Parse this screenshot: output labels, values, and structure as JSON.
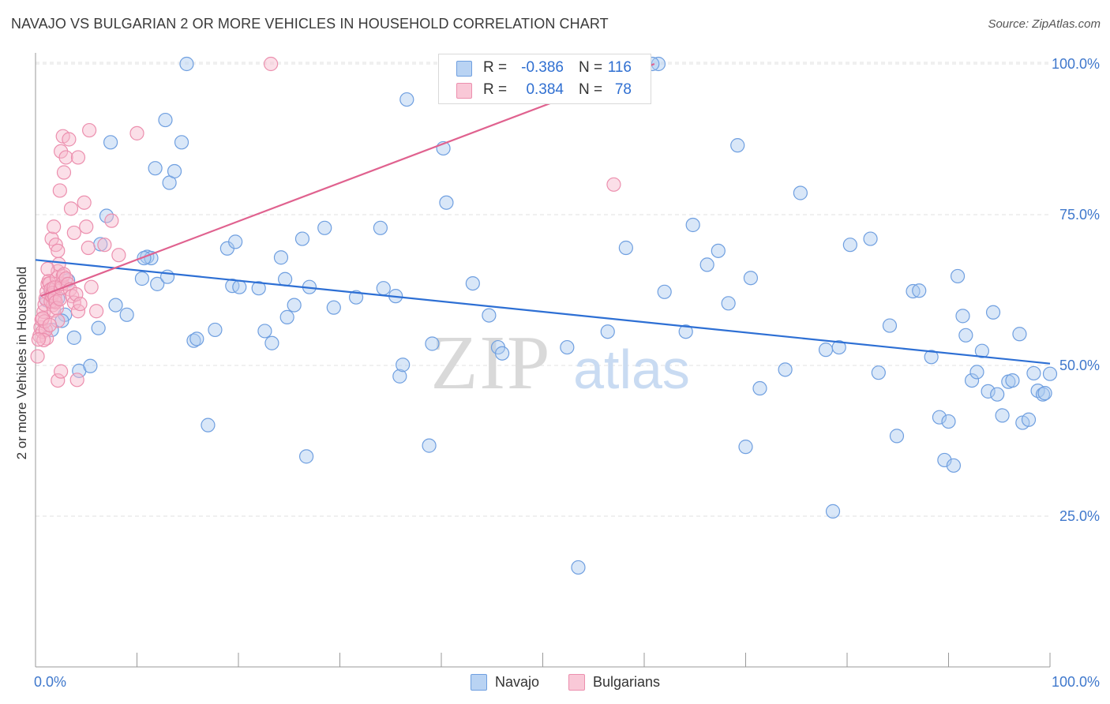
{
  "title": "NAVAJO VS BULGARIAN 2 OR MORE VEHICLES IN HOUSEHOLD CORRELATION CHART",
  "source": "Source: ZipAtlas.com",
  "watermark": {
    "zip": "ZIP",
    "atlas": "atlas"
  },
  "legend": {
    "rows": [
      {
        "r_label": "R =",
        "r_value": "-0.386",
        "n_label": "N =",
        "n_value": "116"
      },
      {
        "r_label": "R =",
        "r_value": "0.384",
        "n_label": "N =",
        "n_value": "78"
      }
    ]
  },
  "bottom_legend": {
    "navajo": "Navajo",
    "bulgarians": "Bulgarians"
  },
  "colors": {
    "navajo_fill": "#aac9f0",
    "navajo_stroke": "#6f9fe0",
    "navajo_line": "#2d6fd4",
    "bulgarian_fill": "#f7b8cb",
    "bulgarian_stroke": "#ec8fae",
    "bulgarian_line": "#e0628f",
    "tick_label": "#3f78cc",
    "grid": "#e2e2e2"
  },
  "chart_data": {
    "type": "scatter",
    "title": "NAVAJO VS BULGARIAN 2 OR MORE VEHICLES IN HOUSEHOLD CORRELATION CHART",
    "xlabel": "",
    "ylabel": "2 or more Vehicles in Household",
    "xlim": [
      0,
      100
    ],
    "ylim": [
      0,
      103
    ],
    "x_tick_labels": [
      "0.0%",
      "100.0%"
    ],
    "y_ticks": [
      25,
      50,
      75,
      100
    ],
    "y_tick_labels": [
      "25.0%",
      "50.0%",
      "75.0%",
      "100.0%"
    ],
    "grid": true,
    "legend_position": "top-center",
    "series": [
      {
        "name": "Navajo",
        "r": -0.386,
        "n": 116,
        "trend": {
          "x": [
            0,
            100
          ],
          "y": [
            67.5,
            50.3
          ]
        },
        "points": [
          [
            1.5,
            62.4
          ],
          [
            2.2,
            61.1
          ],
          [
            2.9,
            58.4
          ],
          [
            3.2,
            64.1
          ],
          [
            2.6,
            57.4
          ],
          [
            3.8,
            54.6
          ],
          [
            4.3,
            49.1
          ],
          [
            5.4,
            49.9
          ],
          [
            6.4,
            70.1
          ],
          [
            6.2,
            56.2
          ],
          [
            7.0,
            74.8
          ],
          [
            7.4,
            87.0
          ],
          [
            7.9,
            60.0
          ],
          [
            9.0,
            58.4
          ],
          [
            10.5,
            64.4
          ],
          [
            11.0,
            68.0
          ],
          [
            11.4,
            67.8
          ],
          [
            10.7,
            67.8
          ],
          [
            11.8,
            82.7
          ],
          [
            12.8,
            90.7
          ],
          [
            12.0,
            63.5
          ],
          [
            13.0,
            64.7
          ],
          [
            13.2,
            80.3
          ],
          [
            13.7,
            82.2
          ],
          [
            14.4,
            87.0
          ],
          [
            14.9,
            100.0
          ],
          [
            15.6,
            54.1
          ],
          [
            15.9,
            54.4
          ],
          [
            17.0,
            40.1
          ],
          [
            17.7,
            55.9
          ],
          [
            18.9,
            69.4
          ],
          [
            19.7,
            70.5
          ],
          [
            19.4,
            63.2
          ],
          [
            20.1,
            63.0
          ],
          [
            22.6,
            55.7
          ],
          [
            22.0,
            62.8
          ],
          [
            23.3,
            53.7
          ],
          [
            24.2,
            67.9
          ],
          [
            24.8,
            58.0
          ],
          [
            24.6,
            64.3
          ],
          [
            25.5,
            60.0
          ],
          [
            26.3,
            71.0
          ],
          [
            27.0,
            63.0
          ],
          [
            26.7,
            34.9
          ],
          [
            28.5,
            72.8
          ],
          [
            29.4,
            59.6
          ],
          [
            31.6,
            61.3
          ],
          [
            34.0,
            72.8
          ],
          [
            34.3,
            62.8
          ],
          [
            35.5,
            61.5
          ],
          [
            35.9,
            48.2
          ],
          [
            36.2,
            50.1
          ],
          [
            36.6,
            94.1
          ],
          [
            38.8,
            36.7
          ],
          [
            39.1,
            53.6
          ],
          [
            40.2,
            86.0
          ],
          [
            40.5,
            77.0
          ],
          [
            43.1,
            63.6
          ],
          [
            44.7,
            58.3
          ],
          [
            45.6,
            53.0
          ],
          [
            46.0,
            52.0
          ],
          [
            52.4,
            53.0
          ],
          [
            53.5,
            16.5
          ],
          [
            56.4,
            55.6
          ],
          [
            58.2,
            69.5
          ],
          [
            61.4,
            100.0
          ],
          [
            60.8,
            100.0
          ],
          [
            62.0,
            62.2
          ],
          [
            64.1,
            55.6
          ],
          [
            64.8,
            73.3
          ],
          [
            66.2,
            66.7
          ],
          [
            67.3,
            69.0
          ],
          [
            68.3,
            60.3
          ],
          [
            69.2,
            86.5
          ],
          [
            70.0,
            36.5
          ],
          [
            70.5,
            64.5
          ],
          [
            71.4,
            46.2
          ],
          [
            73.9,
            49.3
          ],
          [
            75.4,
            78.6
          ],
          [
            77.9,
            52.6
          ],
          [
            78.6,
            25.8
          ],
          [
            79.2,
            53.0
          ],
          [
            80.3,
            70.0
          ],
          [
            82.3,
            71.0
          ],
          [
            83.1,
            48.8
          ],
          [
            84.2,
            56.6
          ],
          [
            84.9,
            38.3
          ],
          [
            86.5,
            62.3
          ],
          [
            87.1,
            62.4
          ],
          [
            88.3,
            51.4
          ],
          [
            89.1,
            41.4
          ],
          [
            89.6,
            34.3
          ],
          [
            90.0,
            40.7
          ],
          [
            90.5,
            33.4
          ],
          [
            90.9,
            64.8
          ],
          [
            91.4,
            58.2
          ],
          [
            91.7,
            55.0
          ],
          [
            92.3,
            47.5
          ],
          [
            92.8,
            48.9
          ],
          [
            93.3,
            52.4
          ],
          [
            93.9,
            45.7
          ],
          [
            94.4,
            58.8
          ],
          [
            94.8,
            45.2
          ],
          [
            95.3,
            41.7
          ],
          [
            95.9,
            47.3
          ],
          [
            96.3,
            47.5
          ],
          [
            97.0,
            55.2
          ],
          [
            97.3,
            40.5
          ],
          [
            97.9,
            41.0
          ],
          [
            98.4,
            48.7
          ],
          [
            98.8,
            45.8
          ],
          [
            99.3,
            45.2
          ],
          [
            99.5,
            45.4
          ],
          [
            100.0,
            48.6
          ],
          [
            1.1,
            60.8
          ],
          [
            1.6,
            55.9
          ]
        ]
      },
      {
        "name": "Bulgarians",
        "r": 0.384,
        "n": 78,
        "trend": {
          "x": [
            0.5,
            61.0
          ],
          "y": [
            61.5,
            100.0
          ]
        },
        "points": [
          [
            0.2,
            51.5
          ],
          [
            0.4,
            54.9
          ],
          [
            0.5,
            56.3
          ],
          [
            0.6,
            57.6
          ],
          [
            0.7,
            55.6
          ],
          [
            0.8,
            58.9
          ],
          [
            0.9,
            60.1
          ],
          [
            1.0,
            61.1
          ],
          [
            1.1,
            62.2
          ],
          [
            1.2,
            63.5
          ],
          [
            1.3,
            64.0
          ],
          [
            1.4,
            63.6
          ],
          [
            1.5,
            62.6
          ],
          [
            1.6,
            61.4
          ],
          [
            1.7,
            60.0
          ],
          [
            1.8,
            59.1
          ],
          [
            1.9,
            60.7
          ],
          [
            2.0,
            62.9
          ],
          [
            2.1,
            64.5
          ],
          [
            2.2,
            65.6
          ],
          [
            2.3,
            66.8
          ],
          [
            1.1,
            54.5
          ],
          [
            1.0,
            55.9
          ],
          [
            0.9,
            57.3
          ],
          [
            0.8,
            54.2
          ],
          [
            0.7,
            57.8
          ],
          [
            1.5,
            60.6
          ],
          [
            1.6,
            61.6
          ],
          [
            1.7,
            62.0
          ],
          [
            1.8,
            62.9
          ],
          [
            1.9,
            61.3
          ],
          [
            2.0,
            60.5
          ],
          [
            2.1,
            59.5
          ],
          [
            2.2,
            57.4
          ],
          [
            2.4,
            61.0
          ],
          [
            2.5,
            62.8
          ],
          [
            2.6,
            63.5
          ],
          [
            2.7,
            64.8
          ],
          [
            2.8,
            65.1
          ],
          [
            3.0,
            64.4
          ],
          [
            3.2,
            63.5
          ],
          [
            3.4,
            62.6
          ],
          [
            3.6,
            61.5
          ],
          [
            3.8,
            60.4
          ],
          [
            4.0,
            61.8
          ],
          [
            4.2,
            59.0
          ],
          [
            1.6,
            71.0
          ],
          [
            1.8,
            73.0
          ],
          [
            2.0,
            70.0
          ],
          [
            2.2,
            69.0
          ],
          [
            2.4,
            79.0
          ],
          [
            2.5,
            85.5
          ],
          [
            2.7,
            88.0
          ],
          [
            2.8,
            82.0
          ],
          [
            3.0,
            84.5
          ],
          [
            3.3,
            87.5
          ],
          [
            3.5,
            76.0
          ],
          [
            3.8,
            72.0
          ],
          [
            4.2,
            84.5
          ],
          [
            4.8,
            77.0
          ],
          [
            5.3,
            89.0
          ],
          [
            5.0,
            73.0
          ],
          [
            5.2,
            69.5
          ],
          [
            6.0,
            59.0
          ],
          [
            6.8,
            70.0
          ],
          [
            7.5,
            74.0
          ],
          [
            8.2,
            68.3
          ],
          [
            10.0,
            88.5
          ],
          [
            2.2,
            47.5
          ],
          [
            2.5,
            49.0
          ],
          [
            4.1,
            47.6
          ],
          [
            4.4,
            60.2
          ],
          [
            5.5,
            63.0
          ],
          [
            1.2,
            66.0
          ],
          [
            23.2,
            100.0
          ],
          [
            57.0,
            80.0
          ],
          [
            0.3,
            54.3
          ],
          [
            1.4,
            56.7
          ]
        ]
      }
    ]
  }
}
